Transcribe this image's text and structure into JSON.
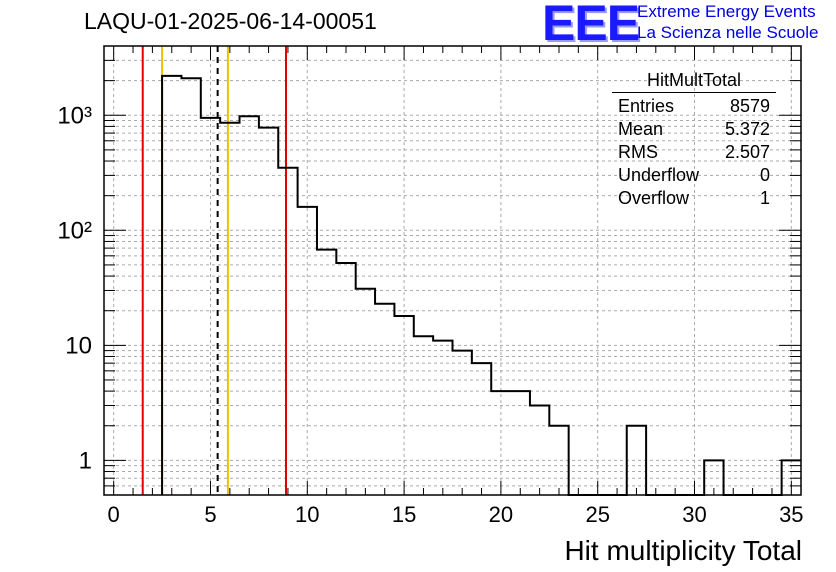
{
  "header": {
    "title": "LAQU-01-2025-06-14-00051",
    "logo_text": "EEE",
    "logo_line1": "Extreme Energy Events",
    "logo_line2": "La Scienza nelle Scuole"
  },
  "stats_box": {
    "title": "HitMultTotal",
    "rows": [
      {
        "label": "Entries",
        "value": "8579"
      },
      {
        "label": "Mean",
        "value": "5.372"
      },
      {
        "label": "RMS",
        "value": "2.507"
      },
      {
        "label": "Underflow",
        "value": "0"
      },
      {
        "label": "Overflow",
        "value": "1"
      }
    ]
  },
  "chart_data": {
    "type": "histogram",
    "xlabel": "Hit multiplicity Total",
    "ylabel": "",
    "xlim": [
      -0.5,
      35.5
    ],
    "ylim": [
      0.5,
      4000
    ],
    "y_scale": "log",
    "grid": true,
    "x_ticks": [
      0,
      5,
      10,
      15,
      20,
      25,
      30,
      35
    ],
    "y_ticks": [
      {
        "value": 1,
        "label": "1"
      },
      {
        "value": 10,
        "label": "10"
      },
      {
        "value": 100,
        "label": "10²"
      },
      {
        "value": 1000,
        "label": "10³"
      }
    ],
    "bin_width": 1,
    "bin_starts": [
      2.5,
      3.5,
      4.5,
      5.5,
      6.5,
      7.5,
      8.5,
      9.5,
      10.5,
      11.5,
      12.5,
      13.5,
      14.5,
      15.5,
      16.5,
      17.5,
      18.5,
      19.5,
      20.5,
      21.5,
      22.5,
      23.5,
      24.5,
      25.5,
      26.5,
      27.5,
      28.5,
      29.5,
      30.5,
      31.5,
      32.5,
      33.5,
      34.5
    ],
    "counts": [
      2200,
      2100,
      950,
      860,
      980,
      780,
      350,
      160,
      68,
      52,
      31,
      23,
      18,
      12,
      11,
      9,
      7,
      4,
      4,
      3,
      2,
      0,
      0,
      0,
      2,
      0,
      0,
      0,
      1,
      0,
      0,
      0,
      1
    ],
    "vertical_lines": [
      {
        "x": 1.5,
        "color": "#e00000",
        "style": "solid"
      },
      {
        "x": 2.5,
        "color": "#f0c000",
        "style": "solid"
      },
      {
        "x": 5.37,
        "color": "#000000",
        "style": "dashed"
      },
      {
        "x": 5.9,
        "color": "#f0c000",
        "style": "solid"
      },
      {
        "x": 8.9,
        "color": "#e00000",
        "style": "solid"
      }
    ]
  }
}
